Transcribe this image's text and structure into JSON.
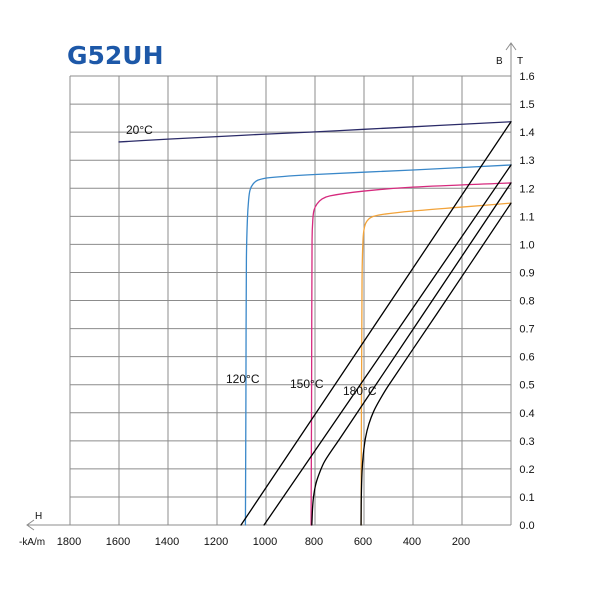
{
  "chart_data": {
    "type": "line",
    "title": "G52UH",
    "xlabel": "H",
    "xunit": "-kA/m",
    "ylabel": "B",
    "yunit": "T",
    "xlim": [
      0,
      1800
    ],
    "x_reversed": true,
    "ylim": [
      0,
      1.6
    ],
    "grid": true,
    "x_ticks": [
      "1800",
      "1600",
      "1400",
      "1200",
      "1000",
      "800",
      "600",
      "400",
      "200"
    ],
    "y_ticks": [
      "1.6",
      "1.5",
      "1.4",
      "1.3",
      "1.2",
      "1.1",
      "1.0",
      "0.9",
      "0.8",
      "0.7",
      "0.6",
      "0.5",
      "0.4",
      "0.3",
      "0.2",
      "0.1",
      "0.0"
    ],
    "series": [
      {
        "name": "20°C",
        "color": "#2b2b68",
        "points": [
          [
            1600,
            1.365
          ],
          [
            1400,
            1.375
          ],
          [
            1200,
            1.384
          ],
          [
            1000,
            1.393
          ],
          [
            800,
            1.401
          ],
          [
            600,
            1.41
          ],
          [
            400,
            1.419
          ],
          [
            200,
            1.428
          ],
          [
            0,
            1.437
          ]
        ]
      },
      {
        "name": "120°C",
        "color": "#3a88c9",
        "points": [
          [
            0,
            1.283
          ],
          [
            400,
            1.265
          ],
          [
            800,
            1.249
          ],
          [
            984,
            1.238
          ],
          [
            1033,
            1.229
          ],
          [
            1053,
            1.215
          ],
          [
            1065,
            1.194
          ],
          [
            1071,
            1.158
          ],
          [
            1076,
            1.087
          ],
          [
            1080,
            0.944
          ],
          [
            1082,
            0.445
          ],
          [
            1084,
            0
          ]
        ]
      },
      {
        "name": "150°C",
        "color": "#d62a7e",
        "points": [
          [
            0,
            1.219
          ],
          [
            400,
            1.204
          ],
          [
            600,
            1.19
          ],
          [
            739,
            1.173
          ],
          [
            771,
            1.162
          ],
          [
            792,
            1.144
          ],
          [
            804,
            1.122
          ],
          [
            809,
            1.087
          ],
          [
            812,
            1.016
          ],
          [
            814,
            0.445
          ],
          [
            816,
            0
          ]
        ]
      },
      {
        "name": "180°C",
        "color": "#f2a33a",
        "points": [
          [
            0,
            1.147
          ],
          [
            200,
            1.133
          ],
          [
            400,
            1.119
          ],
          [
            514,
            1.108
          ],
          [
            567,
            1.098
          ],
          [
            588,
            1.083
          ],
          [
            598,
            1.062
          ],
          [
            604,
            1.016
          ],
          [
            608,
            0.873
          ],
          [
            612,
            0
          ]
        ]
      },
      {
        "color": "#000000",
        "points": [
          [
            0,
            1.437
          ],
          [
            1102,
            0
          ]
        ]
      },
      {
        "color": "#000000",
        "points": [
          [
            0,
            1.283
          ],
          [
            1008,
            0
          ]
        ]
      },
      {
        "color": "#000000",
        "points": [
          [
            0,
            1.219
          ],
          [
            700,
            0.306
          ],
          [
            760,
            0.228
          ],
          [
            782,
            0.185
          ],
          [
            797,
            0.145
          ],
          [
            806,
            0.1
          ],
          [
            810,
            0.06
          ],
          [
            812,
            0.02
          ],
          [
            813,
            0
          ]
        ]
      },
      {
        "color": "#000000",
        "points": [
          [
            0,
            1.147
          ],
          [
            300,
            0.756
          ],
          [
            500,
            0.497
          ],
          [
            535,
            0.447
          ],
          [
            560,
            0.406
          ],
          [
            580,
            0.36
          ],
          [
            594,
            0.31
          ],
          [
            603,
            0.25
          ],
          [
            608,
            0.19
          ],
          [
            611,
            0.1
          ],
          [
            612,
            0
          ]
        ]
      }
    ]
  }
}
